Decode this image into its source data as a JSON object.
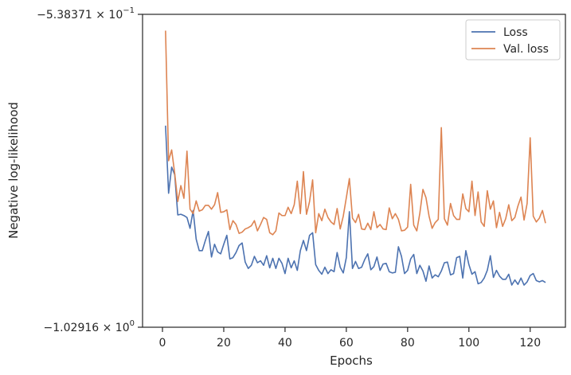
{
  "chart_data": {
    "type": "line",
    "title": "",
    "xlabel": "Epochs",
    "ylabel": "Negative log-likelihood",
    "xlim": [
      -6.5,
      131.5
    ],
    "xticks": [
      0,
      20,
      40,
      60,
      80,
      100,
      120
    ],
    "ylim": [
      -1.02916,
      -0.538371
    ],
    "yscale": "symlog-style (tick labels in scientific notation)",
    "ytick_labels": [
      {
        "value": -0.538371,
        "mantissa": "−5.38371",
        "exponent": "−1"
      },
      {
        "value": -1.02916,
        "mantissa": "−1.02916",
        "exponent": "0"
      }
    ],
    "grid": false,
    "legend": {
      "position": "top-right"
    },
    "series": [
      {
        "name": "Loss",
        "color": "#4c72b0",
        "values": [
          -0.713,
          -0.819,
          -0.778,
          -0.79,
          -0.853,
          -0.852,
          -0.854,
          -0.857,
          -0.874,
          -0.846,
          -0.891,
          -0.909,
          -0.909,
          -0.893,
          -0.879,
          -0.919,
          -0.899,
          -0.911,
          -0.914,
          -0.899,
          -0.885,
          -0.922,
          -0.92,
          -0.912,
          -0.901,
          -0.897,
          -0.927,
          -0.937,
          -0.932,
          -0.918,
          -0.928,
          -0.925,
          -0.932,
          -0.917,
          -0.936,
          -0.921,
          -0.937,
          -0.921,
          -0.929,
          -0.945,
          -0.921,
          -0.936,
          -0.925,
          -0.94,
          -0.909,
          -0.893,
          -0.909,
          -0.885,
          -0.881,
          -0.931,
          -0.94,
          -0.946,
          -0.935,
          -0.945,
          -0.939,
          -0.942,
          -0.912,
          -0.935,
          -0.944,
          -0.92,
          -0.848,
          -0.937,
          -0.926,
          -0.937,
          -0.935,
          -0.923,
          -0.914,
          -0.939,
          -0.934,
          -0.919,
          -0.94,
          -0.93,
          -0.929,
          -0.942,
          -0.944,
          -0.943,
          -0.903,
          -0.918,
          -0.945,
          -0.94,
          -0.922,
          -0.915,
          -0.945,
          -0.932,
          -0.941,
          -0.957,
          -0.933,
          -0.952,
          -0.947,
          -0.95,
          -0.941,
          -0.928,
          -0.927,
          -0.947,
          -0.945,
          -0.92,
          -0.918,
          -0.952,
          -0.909,
          -0.931,
          -0.946,
          -0.942,
          -0.961,
          -0.959,
          -0.952,
          -0.94,
          -0.917,
          -0.951,
          -0.94,
          -0.949,
          -0.954,
          -0.954,
          -0.946,
          -0.963,
          -0.955,
          -0.962,
          -0.952,
          -0.963,
          -0.958,
          -0.948,
          -0.945,
          -0.956,
          -0.958,
          -0.956,
          -0.959
        ]
      },
      {
        "name": "Val. loss",
        "color": "#dd8452",
        "values": [
          -0.564,
          -0.768,
          -0.751,
          -0.788,
          -0.832,
          -0.807,
          -0.827,
          -0.753,
          -0.844,
          -0.851,
          -0.831,
          -0.847,
          -0.845,
          -0.838,
          -0.838,
          -0.844,
          -0.837,
          -0.818,
          -0.849,
          -0.848,
          -0.845,
          -0.876,
          -0.862,
          -0.868,
          -0.882,
          -0.88,
          -0.875,
          -0.873,
          -0.87,
          -0.862,
          -0.878,
          -0.868,
          -0.857,
          -0.86,
          -0.881,
          -0.884,
          -0.878,
          -0.85,
          -0.854,
          -0.854,
          -0.841,
          -0.851,
          -0.837,
          -0.8,
          -0.851,
          -0.785,
          -0.852,
          -0.832,
          -0.798,
          -0.881,
          -0.851,
          -0.862,
          -0.844,
          -0.857,
          -0.864,
          -0.868,
          -0.843,
          -0.875,
          -0.855,
          -0.826,
          -0.796,
          -0.858,
          -0.865,
          -0.852,
          -0.875,
          -0.876,
          -0.866,
          -0.876,
          -0.848,
          -0.873,
          -0.868,
          -0.875,
          -0.876,
          -0.842,
          -0.859,
          -0.851,
          -0.86,
          -0.878,
          -0.877,
          -0.872,
          -0.805,
          -0.869,
          -0.878,
          -0.85,
          -0.813,
          -0.826,
          -0.855,
          -0.874,
          -0.865,
          -0.86,
          -0.716,
          -0.859,
          -0.869,
          -0.835,
          -0.854,
          -0.86,
          -0.86,
          -0.82,
          -0.843,
          -0.848,
          -0.8,
          -0.854,
          -0.817,
          -0.864,
          -0.871,
          -0.815,
          -0.844,
          -0.831,
          -0.873,
          -0.849,
          -0.871,
          -0.859,
          -0.837,
          -0.862,
          -0.857,
          -0.839,
          -0.825,
          -0.861,
          -0.835,
          -0.732,
          -0.855,
          -0.864,
          -0.858,
          -0.846,
          -0.866
        ]
      }
    ]
  }
}
